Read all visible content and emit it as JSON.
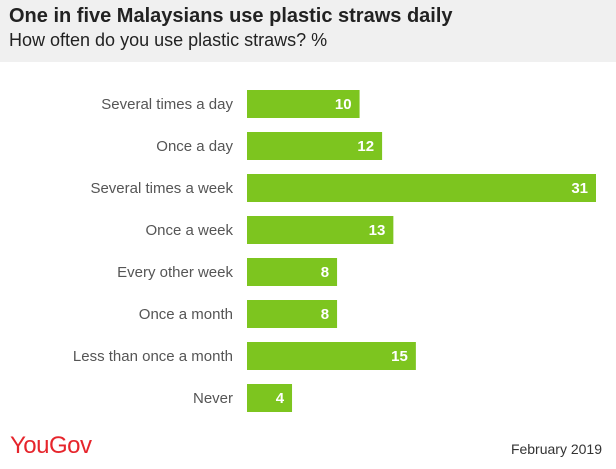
{
  "header": {
    "title": "One in five Malaysians use plastic straws daily",
    "subtitle": "How often do you use plastic straws? %"
  },
  "footer": {
    "brand": "YouGov",
    "date": "February 2019"
  },
  "colors": {
    "bar": "#7dc51f",
    "header_bg": "#f0f0f0",
    "brand": "#e6252c"
  },
  "chart_data": {
    "type": "bar",
    "orientation": "horizontal",
    "title": "One in five Malaysians use plastic straws daily",
    "subtitle": "How often do you use plastic straws? %",
    "categories": [
      "Several times a day",
      "Once a day",
      "Several times a week",
      "Once a week",
      "Every other week",
      "Once a month",
      "Less than once a month",
      "Never"
    ],
    "values": [
      10,
      12,
      31,
      13,
      8,
      8,
      15,
      4
    ],
    "xlim": [
      0,
      31
    ],
    "grid": false,
    "legend": "none"
  }
}
